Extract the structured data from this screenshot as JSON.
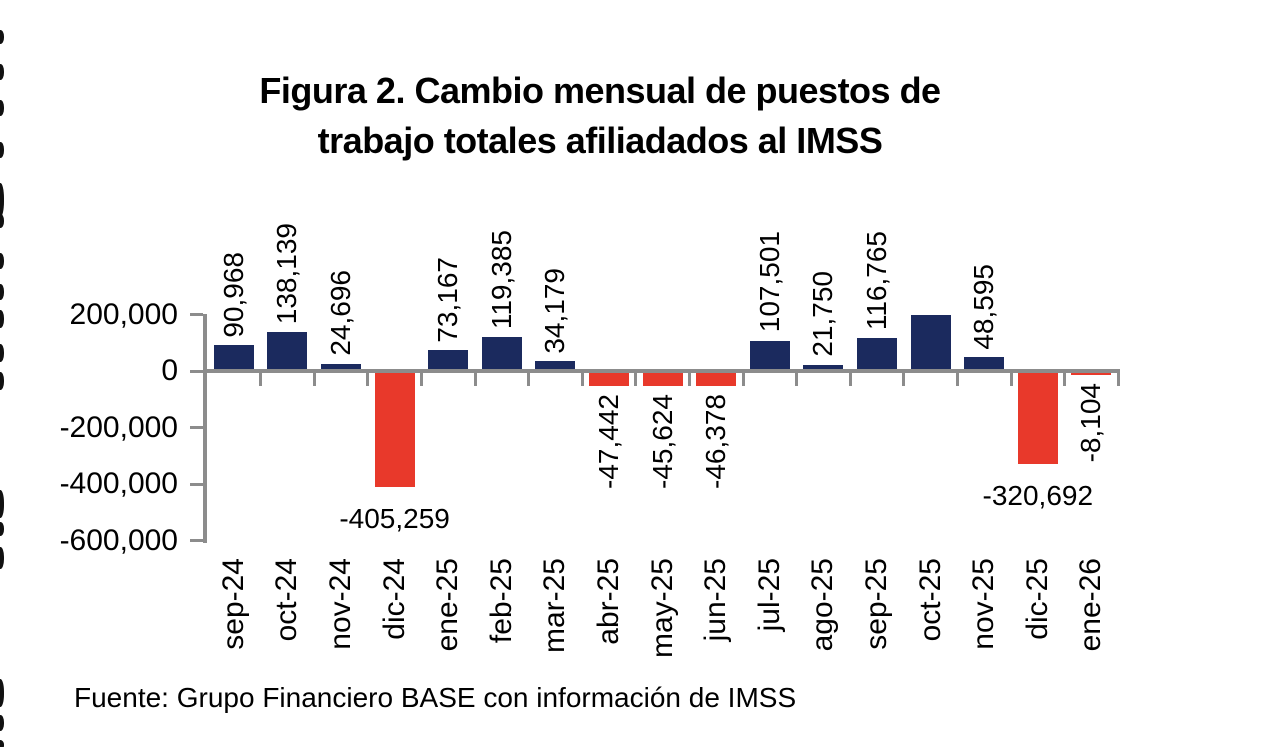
{
  "page": {
    "background": "#ffffff"
  },
  "chart_data": {
    "type": "bar",
    "title": "Figura 2. Cambio mensual de puestos de trabajo totales afiliadados al IMSS",
    "title_line1": "Figura 2. Cambio mensual de puestos de",
    "title_line2": "trabajo totales afiliadados al IMSS",
    "xlabel": "",
    "ylabel": "",
    "categories": [
      "sep-24",
      "oct-24",
      "nov-24",
      "dic-24",
      "ene-25",
      "feb-25",
      "mar-25",
      "abr-25",
      "may-25",
      "jun-25",
      "jul-25",
      "ago-25",
      "sep-25",
      "oct-25",
      "nov-25",
      "dic-25",
      "ene-26"
    ],
    "values": [
      90968,
      138139,
      24696,
      -405259,
      73167,
      119385,
      34179,
      -47442,
      -45624,
      -46378,
      107501,
      21750,
      116765,
      200000,
      48595,
      -320692,
      -8104
    ],
    "bar_labels": [
      "90,968",
      "138,139",
      "24,696",
      "-405,259",
      "73,167",
      "119,385",
      "34,179",
      "-47,442",
      "-45,624",
      "-46,378",
      "107,501",
      "21,750",
      "116,765",
      "",
      "48,595",
      "-320,692",
      "-8,104"
    ],
    "label_layout": [
      "v-above",
      "v-above",
      "v-above",
      "h-below",
      "v-above",
      "v-above",
      "v-above",
      "v-below",
      "v-below",
      "v-below",
      "v-above",
      "v-above",
      "v-above",
      "none",
      "v-above",
      "h-below",
      "v-below"
    ],
    "note_oct_25": "oct-25 bar rendered without a data label; value estimated from axis scale (about 200,000)",
    "ylim": [
      -600000,
      200000
    ],
    "yticks": [
      {
        "label": "200,000",
        "value": 200000
      },
      {
        "label": "0",
        "value": 0
      },
      {
        "label": "-200,000",
        "value": -200000
      },
      {
        "label": "-400,000",
        "value": -400000
      },
      {
        "label": "-600,000",
        "value": -600000
      }
    ],
    "grid": "off",
    "legend": "none",
    "positive_color": "#1B2A5E",
    "negative_color": "#E8392B",
    "axis_color": "#8C8C8C",
    "text_color": "#000000",
    "source": "Fuente: Grupo Financiero BASE con información de IMSS"
  }
}
